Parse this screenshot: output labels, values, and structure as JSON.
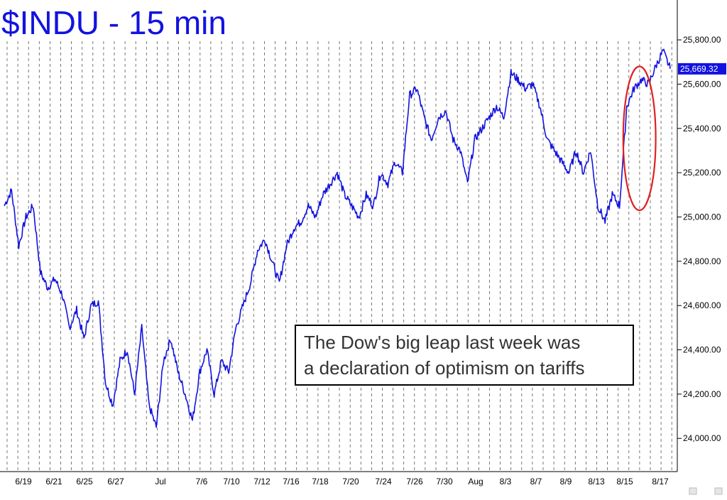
{
  "chart_data": {
    "type": "line",
    "title": "$INDU - 15 min",
    "annotation": [
      "The Dow's big leap last week was",
      "a declaration of optimism on tariffs"
    ],
    "last_price_label": "25,669.32",
    "last_price": 25669.32,
    "ylim": [
      23850,
      25980
    ],
    "y_ticks": [
      {
        "value": 25800,
        "label": "25,800.00"
      },
      {
        "value": 25600,
        "label": "25,600.00"
      },
      {
        "value": 25400,
        "label": "25,400.00"
      },
      {
        "value": 25200,
        "label": "25,200.00"
      },
      {
        "value": 25000,
        "label": "25,000.00"
      },
      {
        "value": 24800,
        "label": "24,800.00"
      },
      {
        "value": 24600,
        "label": "24,600.00"
      },
      {
        "value": 24400,
        "label": "24,400.00"
      },
      {
        "value": 24200,
        "label": "24,200.00"
      },
      {
        "value": 24000,
        "label": "24,000.00"
      }
    ],
    "x_ticks": [
      "6/19",
      "6/21",
      "6/25",
      "6/27",
      "Jul",
      "7/6",
      "7/10",
      "7/12",
      "7/16",
      "7/18",
      "7/20",
      "7/24",
      "7/26",
      "7/30",
      "Aug",
      "8/3",
      "8/7",
      "8/9",
      "8/13",
      "8/15",
      "8/17"
    ],
    "grid": "vertical dashed lines",
    "series": [
      {
        "color": "#1212e0",
        "values": [
          [
            0,
            25050
          ],
          [
            1,
            25120
          ],
          [
            2,
            24870
          ],
          [
            3,
            25000
          ],
          [
            4,
            25050
          ],
          [
            5,
            24750
          ],
          [
            6,
            24680
          ],
          [
            7,
            24720
          ],
          [
            8,
            24650
          ],
          [
            9,
            24500
          ],
          [
            10,
            24580
          ],
          [
            11,
            24450
          ],
          [
            12,
            24600
          ],
          [
            13,
            24620
          ],
          [
            14,
            24250
          ],
          [
            15,
            24150
          ],
          [
            16,
            24350
          ],
          [
            17,
            24400
          ],
          [
            18,
            24200
          ],
          [
            19,
            24500
          ],
          [
            20,
            24150
          ],
          [
            21,
            24050
          ],
          [
            22,
            24350
          ],
          [
            23,
            24450
          ],
          [
            24,
            24300
          ],
          [
            25,
            24200
          ],
          [
            26,
            24080
          ],
          [
            27,
            24300
          ],
          [
            28,
            24400
          ],
          [
            29,
            24200
          ],
          [
            30,
            24350
          ],
          [
            31,
            24300
          ],
          [
            32,
            24500
          ],
          [
            33,
            24600
          ],
          [
            34,
            24700
          ],
          [
            35,
            24850
          ],
          [
            36,
            24900
          ],
          [
            37,
            24800
          ],
          [
            38,
            24700
          ],
          [
            39,
            24870
          ],
          [
            40,
            24950
          ],
          [
            41,
            24980
          ],
          [
            42,
            25050
          ],
          [
            43,
            25000
          ],
          [
            44,
            25100
          ],
          [
            45,
            25150
          ],
          [
            46,
            25200
          ],
          [
            47,
            25100
          ],
          [
            48,
            25050
          ],
          [
            49,
            25000
          ],
          [
            50,
            25100
          ],
          [
            51,
            25050
          ],
          [
            52,
            25200
          ],
          [
            53,
            25150
          ],
          [
            54,
            25250
          ],
          [
            55,
            25200
          ],
          [
            56,
            25550
          ],
          [
            57,
            25580
          ],
          [
            58,
            25450
          ],
          [
            59,
            25350
          ],
          [
            60,
            25450
          ],
          [
            61,
            25480
          ],
          [
            62,
            25350
          ],
          [
            63,
            25300
          ],
          [
            64,
            25150
          ],
          [
            65,
            25350
          ],
          [
            66,
            25400
          ],
          [
            67,
            25450
          ],
          [
            68,
            25500
          ],
          [
            69,
            25450
          ],
          [
            70,
            25650
          ],
          [
            71,
            25620
          ],
          [
            72,
            25580
          ],
          [
            73,
            25600
          ],
          [
            74,
            25500
          ],
          [
            75,
            25350
          ],
          [
            76,
            25300
          ],
          [
            77,
            25250
          ],
          [
            78,
            25200
          ],
          [
            79,
            25300
          ],
          [
            80,
            25200
          ],
          [
            81,
            25300
          ],
          [
            82,
            25050
          ],
          [
            83,
            24980
          ],
          [
            84,
            25100
          ],
          [
            85,
            25050
          ],
          [
            86,
            25500
          ],
          [
            87,
            25580
          ],
          [
            88,
            25620
          ],
          [
            89,
            25600
          ],
          [
            90,
            25680
          ],
          [
            91,
            25750
          ],
          [
            92,
            25669.32
          ]
        ]
      }
    ],
    "highlight": {
      "shape": "ellipse",
      "color": "#e02020",
      "x_index_range": [
        85.5,
        90
      ],
      "y_range": [
        25030,
        25680
      ]
    }
  }
}
